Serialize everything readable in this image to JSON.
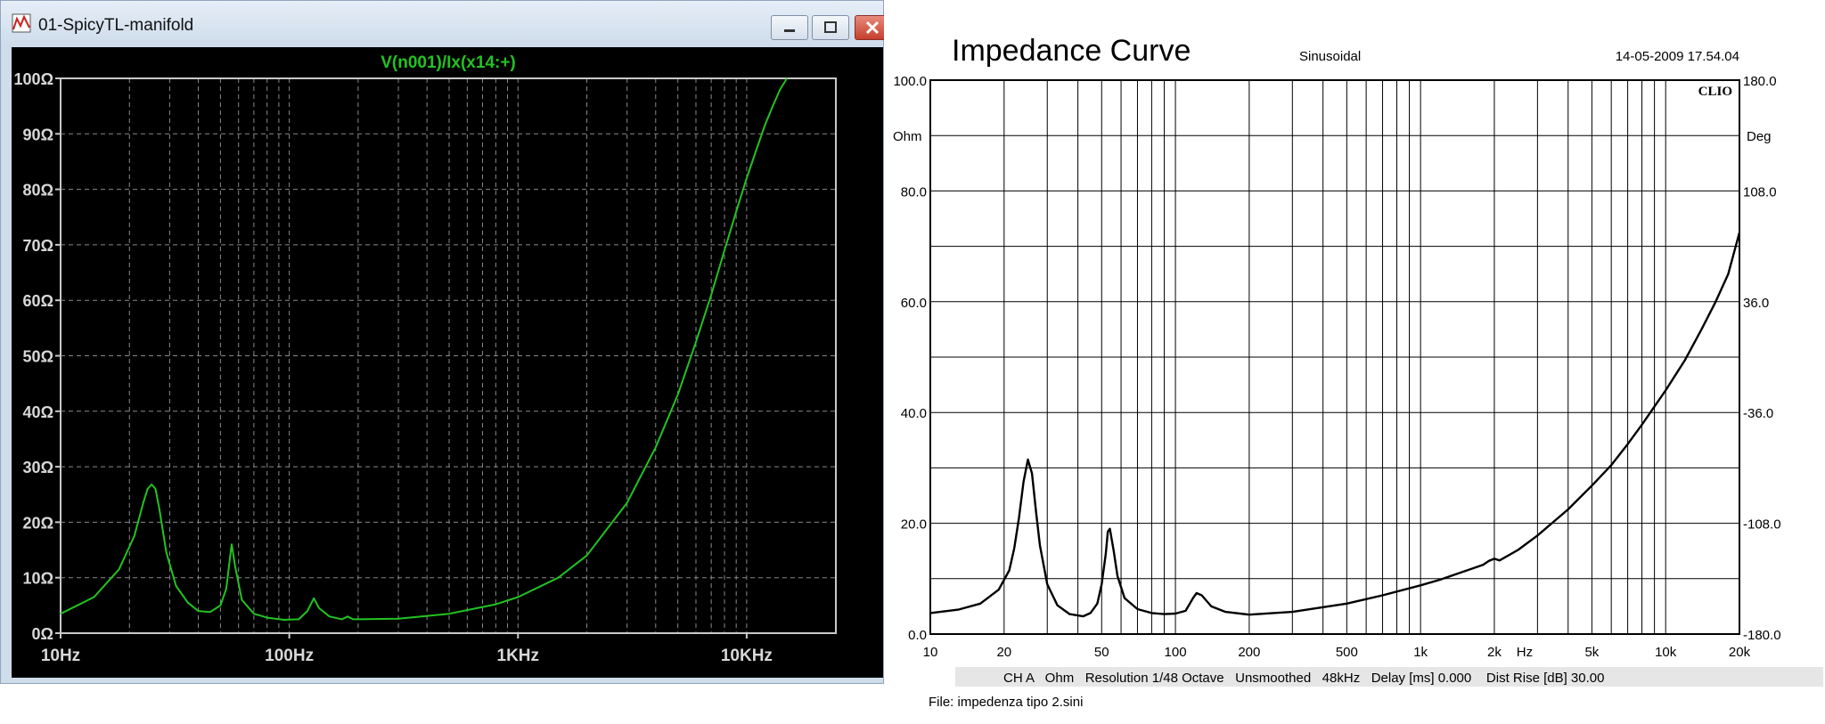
{
  "window": {
    "title": "01-SpicyTL-manifold",
    "min_icon": "minimize-icon",
    "max_icon": "maximize-icon",
    "close_icon": "close-icon"
  },
  "ltspice_plot": {
    "trace_label": "V(n001)/Ix(x14:+)",
    "trace_color": "#22c322",
    "background": "#000000"
  },
  "clio_plot": {
    "title": "Impedance Curve",
    "mode": "Sinusoidal",
    "timestamp": "14-05-2009 17.54.04",
    "brand": "CLIO",
    "left_unit": "Ohm",
    "right_unit": "Deg",
    "hz_unit": "Hz",
    "status_line": "CH A   Ohm   Resolution 1/48 Octave   Unsmoothed   48kHz   Delay [ms] 0.000    Dist Rise [dB] 30.00",
    "file_line": "File: impedenza tipo 2.sini"
  },
  "chart_data": [
    {
      "type": "line",
      "title": "V(n001)/Ix(x14:+)",
      "x_scale": "log",
      "xlim": [
        10,
        17000
      ],
      "ylim": [
        0,
        100
      ],
      "x_ticks": [
        10,
        100,
        1000,
        10000
      ],
      "x_tick_labels": [
        "10Hz",
        "100Hz",
        "1KHz",
        "10KHz"
      ],
      "y_ticks": [
        0,
        10,
        20,
        30,
        40,
        50,
        60,
        70,
        80,
        90,
        100
      ],
      "y_tick_labels": [
        "0Ω",
        "10Ω",
        "20Ω",
        "30Ω",
        "40Ω",
        "50Ω",
        "60Ω",
        "70Ω",
        "80Ω",
        "90Ω",
        "100Ω"
      ],
      "grid": true,
      "x": [
        10,
        14,
        18,
        21,
        23,
        24,
        25,
        26,
        27,
        29,
        32,
        36,
        40,
        45,
        50,
        53,
        55,
        56,
        58,
        62,
        70,
        80,
        95,
        110,
        120,
        128,
        135,
        150,
        170,
        180,
        190,
        200,
        300,
        500,
        800,
        1000,
        1500,
        2000,
        3000,
        4000,
        5000,
        6000,
        7000,
        8000,
        9000,
        10000,
        11000,
        12000,
        13000,
        14000,
        15000
      ],
      "y": [
        3.5,
        6.5,
        11.5,
        17.5,
        23.5,
        26.0,
        26.8,
        26.0,
        22.5,
        14.5,
        8.5,
        5.5,
        4.0,
        3.8,
        5.0,
        8.0,
        13.5,
        16.0,
        12.0,
        6.0,
        3.5,
        2.8,
        2.4,
        2.5,
        4.0,
        6.3,
        4.5,
        3.0,
        2.5,
        3.0,
        2.5,
        2.5,
        2.6,
        3.5,
        5.2,
        6.5,
        10.0,
        14.0,
        23.5,
        33.5,
        43.0,
        52.5,
        61.0,
        69.0,
        76.0,
        82.0,
        87.0,
        91.5,
        95.0,
        98.0,
        100.0
      ]
    },
    {
      "type": "line",
      "title": "Impedance Curve",
      "x_scale": "log",
      "xlim": [
        10,
        20000
      ],
      "ylim": [
        0,
        100
      ],
      "x_ticks": [
        10,
        20,
        50,
        100,
        200,
        500,
        1000,
        2000,
        5000,
        10000,
        20000
      ],
      "x_tick_labels": [
        "10",
        "20",
        "50",
        "100",
        "200",
        "500",
        "1k",
        "2k",
        "5k",
        "10k",
        "20k"
      ],
      "y_ticks": [
        0,
        20,
        40,
        60,
        80,
        100
      ],
      "y_tick_labels": [
        "0.0",
        "20.0",
        "40.0",
        "60.0",
        "80.0",
        "100.0"
      ],
      "y2_ticks": [
        -180,
        -108,
        -36,
        36,
        108,
        180
      ],
      "y2_tick_labels": [
        "-180.0",
        "-108.0",
        "-36.0",
        "36.0",
        "108.0",
        "180.0"
      ],
      "grid": true,
      "x": [
        10,
        13,
        16,
        19,
        21,
        22,
        23,
        24,
        25,
        26,
        27,
        28,
        30,
        33,
        37,
        42,
        45,
        48,
        50,
        52,
        53,
        54,
        56,
        58,
        62,
        70,
        80,
        90,
        100,
        110,
        118,
        122,
        128,
        140,
        160,
        200,
        300,
        500,
        700,
        1000,
        1200,
        1500,
        1800,
        1900,
        2000,
        2100,
        2500,
        3000,
        4000,
        5000,
        6000,
        7000,
        8000,
        10000,
        12000,
        14000,
        16000,
        18000,
        20000
      ],
      "y": [
        3.8,
        4.4,
        5.5,
        8.0,
        11.5,
        15.5,
        21.0,
        27.5,
        31.5,
        29.0,
        22.0,
        16.0,
        9.0,
        5.2,
        3.6,
        3.2,
        3.8,
        5.5,
        9.0,
        14.5,
        18.5,
        19.0,
        15.0,
        10.5,
        6.5,
        4.5,
        3.8,
        3.6,
        3.7,
        4.2,
        6.5,
        7.4,
        7.0,
        5.0,
        4.0,
        3.5,
        4.0,
        5.5,
        7.0,
        8.8,
        9.8,
        11.3,
        12.5,
        13.2,
        13.6,
        13.3,
        15.2,
        17.8,
        22.5,
        26.8,
        30.5,
        34.3,
        37.8,
        44.0,
        49.5,
        55.0,
        60.0,
        65.0,
        72.5
      ]
    }
  ]
}
